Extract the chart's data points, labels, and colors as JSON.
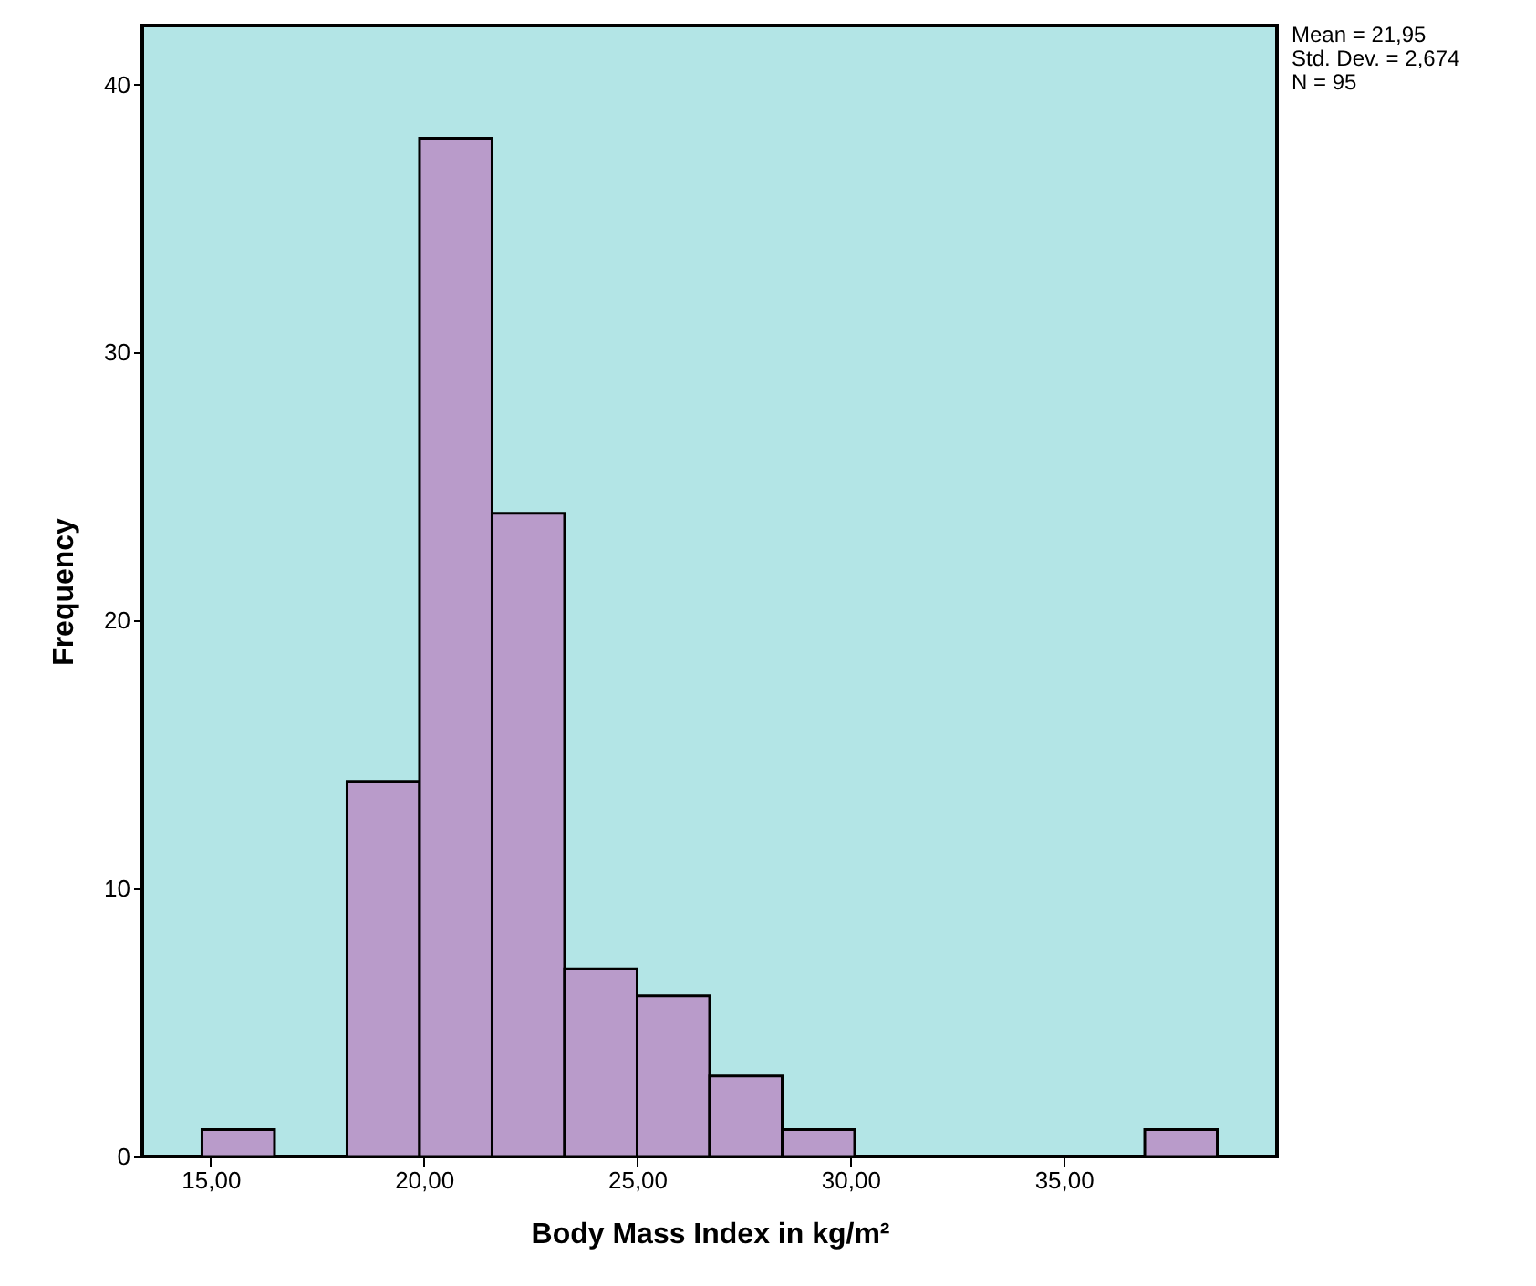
{
  "chart_data": {
    "type": "histogram",
    "xlabel": "Body Mass Index in kg/m²",
    "ylabel": "Frequency",
    "bins": [
      14.8,
      16.5,
      18.2,
      19.9,
      21.6,
      23.3,
      25.0,
      26.7,
      28.4,
      30.1,
      31.8,
      33.5,
      35.2,
      36.9,
      38.6
    ],
    "values": [
      1,
      0,
      14,
      38,
      24,
      7,
      6,
      3,
      1,
      0,
      0,
      0,
      0,
      1
    ],
    "color": "#b99bca",
    "xlim": [
      13.4,
      40.0
    ],
    "ylim": [
      0,
      42.2
    ],
    "xticks": [
      {
        "value": 15,
        "label": "15,00"
      },
      {
        "value": 20,
        "label": "20,00"
      },
      {
        "value": 25,
        "label": "25,00"
      },
      {
        "value": 30,
        "label": "30,00"
      },
      {
        "value": 35,
        "label": "35,00"
      }
    ],
    "yticks": [
      0,
      10,
      20,
      30,
      40
    ],
    "grid": false,
    "annotations": [
      "Mean = 21,95",
      "Std. Dev. = 2,674",
      "N = 95"
    ]
  }
}
